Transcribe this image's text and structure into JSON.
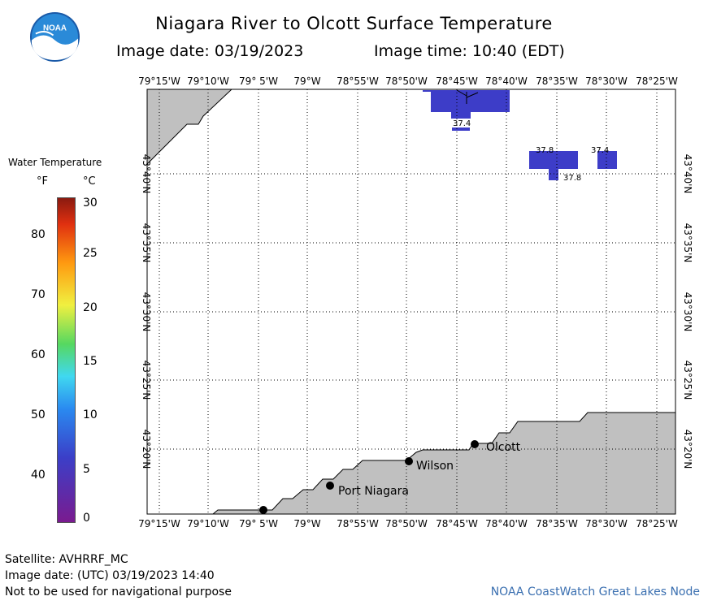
{
  "title": "Niagara River to Olcott Surface Temperature",
  "image_date_label": "Image date: 03/19/2023",
  "image_time_label": "Image time: 10:40 (EDT)",
  "logo_text": "NOAA",
  "legend": {
    "title": "Water Temperature",
    "unit_f": "°F",
    "unit_c": "°C",
    "f_ticks": [
      "80",
      "70",
      "60",
      "50",
      "40"
    ],
    "c_ticks": [
      "30",
      "25",
      "20",
      "15",
      "10",
      "5",
      "0"
    ]
  },
  "axes": {
    "lon_labels": [
      "79°15'W",
      "79°10'W",
      "79° 5'W",
      "79°W",
      "78°55'W",
      "78°50'W",
      "78°45'W",
      "78°40'W",
      "78°35'W",
      "78°30'W",
      "78°25'W"
    ],
    "lat_labels": [
      "43°40'N",
      "43°35'N",
      "43°30'N",
      "43°25'N",
      "43°20'N"
    ]
  },
  "places": [
    {
      "name": "Olcott"
    },
    {
      "name": "Wilson"
    },
    {
      "name": "Port Niagara"
    },
    {
      "name": ""
    }
  ],
  "temp_labels": [
    "37.4",
    "37.8",
    "37.4",
    "37.8"
  ],
  "colors": {
    "water_patch": "#3d3dc8",
    "land": "#c0c0c0",
    "grid": "#000000"
  },
  "footer": {
    "satellite": "Satellite: AVHRRF_MC",
    "image_date_utc": "Image date: (UTC) 03/19/2023  14:40",
    "disclaimer": "Not to be used for navigational purpose",
    "credit": "NOAA CoastWatch Great Lakes Node"
  }
}
